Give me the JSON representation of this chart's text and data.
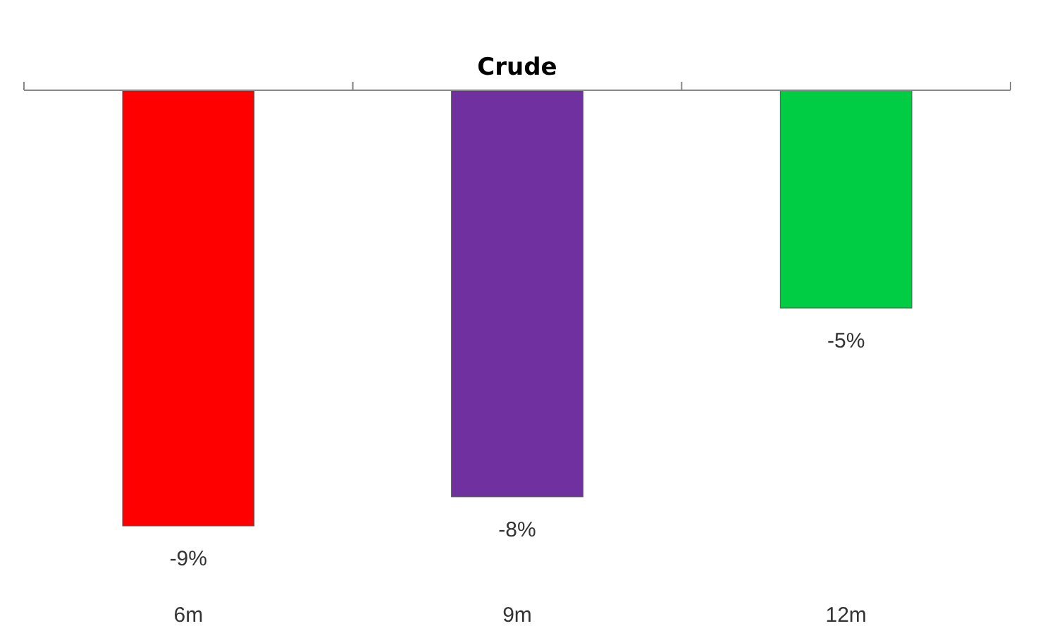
{
  "chart_data": {
    "type": "bar",
    "title": "Crude",
    "categories": [
      "6m",
      "9m",
      "12m"
    ],
    "values": [
      -9,
      -8.4,
      -4.5
    ],
    "colors": [
      "#ff0000",
      "#7030a0",
      "#00cc44"
    ],
    "value_labels": [
      "-9%",
      "-8%",
      "-5%"
    ],
    "tick_labels": "x"
  }
}
